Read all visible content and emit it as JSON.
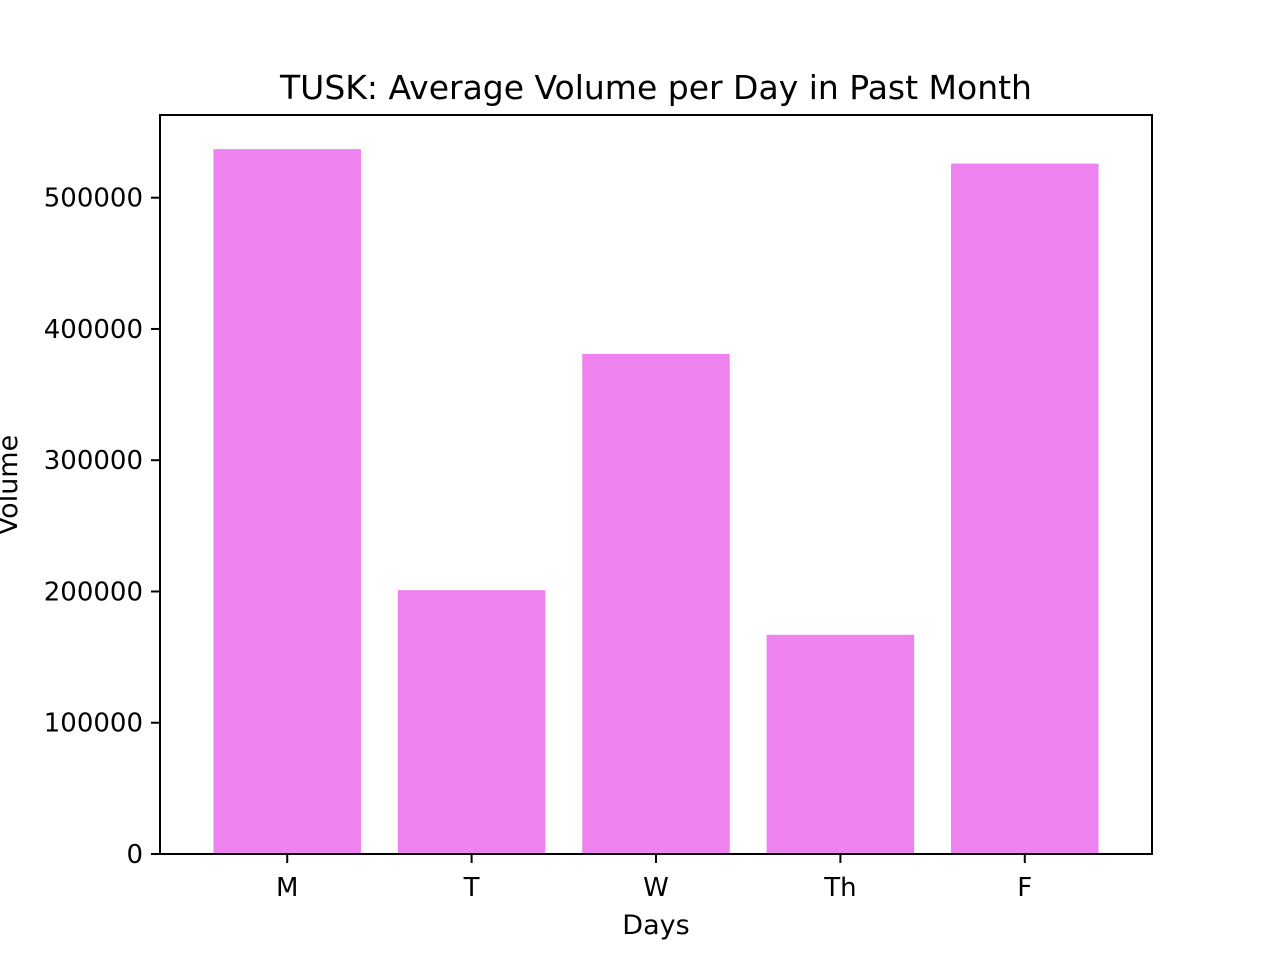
{
  "chart_data": {
    "type": "bar",
    "title": "TUSK: Average Volume per Day in Past Month",
    "xlabel": "Days",
    "ylabel": "Volume",
    "categories": [
      "M",
      "T",
      "W",
      "Th",
      "F"
    ],
    "values": [
      537000,
      201000,
      381000,
      167000,
      526000
    ],
    "ylim": [
      0,
      563000
    ],
    "yticks": [
      0,
      100000,
      200000,
      300000,
      400000,
      500000
    ],
    "ytick_labels": [
      "0",
      "100000",
      "200000",
      "300000",
      "400000",
      "500000"
    ],
    "bar_color": "#ee82ee",
    "grid": false,
    "legend": "none"
  }
}
